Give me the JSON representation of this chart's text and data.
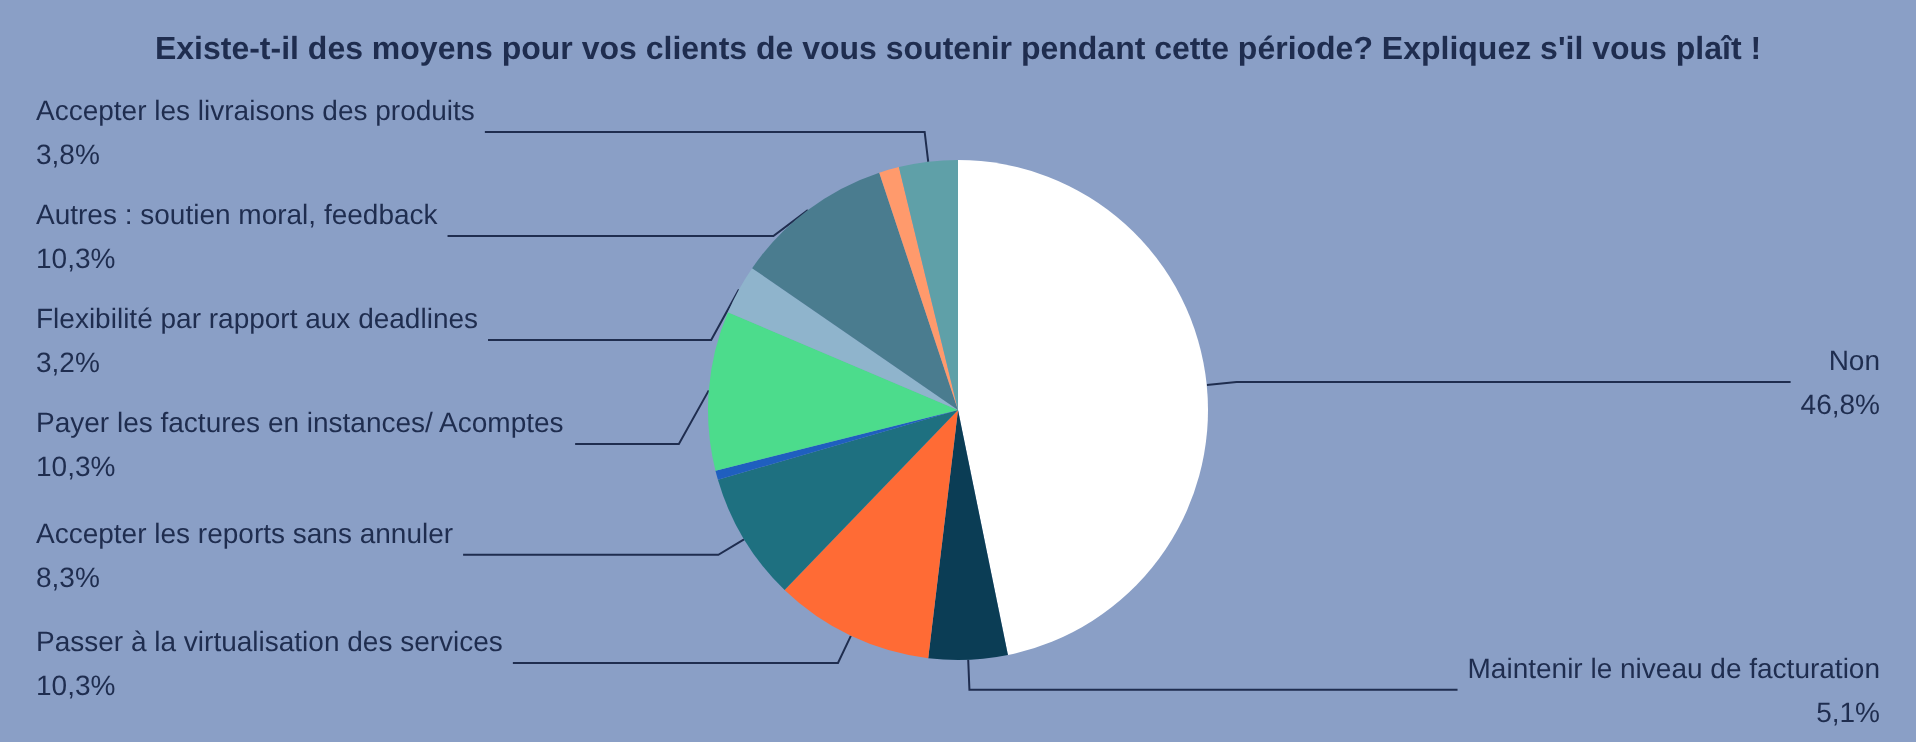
{
  "chart_data": {
    "type": "pie",
    "title": "Existe-t-il des moyens pour vos clients de vous soutenir pendant cette période? Expliquez s'il vous plaît !",
    "categories": [
      "Non",
      "Maintenir le niveau de facturation",
      "Passer à la virtualisation des services",
      "Accepter les reports sans annuler",
      null,
      "Payer les factures en instances/ Acomptes",
      "Flexibilité par rapport aux deadlines",
      "Autres : soutien moral, feedback",
      null,
      "Accepter les livraisons des produits"
    ],
    "values": [
      46.8,
      5.1,
      10.3,
      8.3,
      0.6,
      10.3,
      3.2,
      10.3,
      1.3,
      3.8
    ],
    "value_labels": [
      "46,8%",
      "5,1%",
      "10,3%",
      "8,3%",
      null,
      "10,3%",
      "3,2%",
      "10,3%",
      null,
      "3,8%"
    ],
    "colors": [
      "#ffffff",
      "#0b3d55",
      "#ff6b35",
      "#1e7080",
      "#1f5fbf",
      "#4cdc8c",
      "#8fb4cc",
      "#4a7c8f",
      "#ff9a6c",
      "#5fa0a8"
    ],
    "legend": false
  }
}
